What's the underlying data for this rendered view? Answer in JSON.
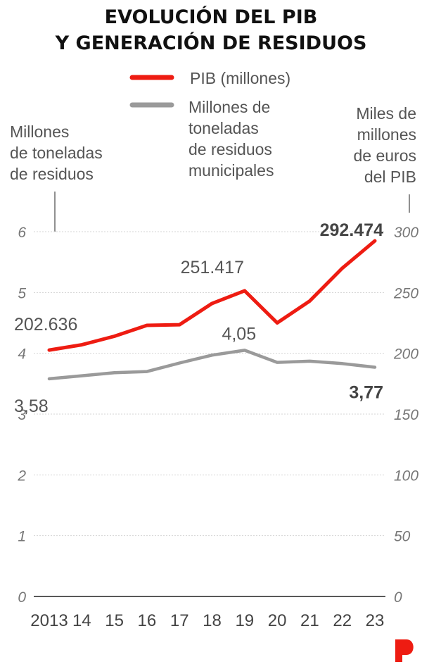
{
  "title_line1": "EVOLUCIÓN DEL PIB",
  "title_line2": "Y GENERACIÓN DE RESIDUOS",
  "legend": {
    "pib": "PIB (millones)",
    "waste_line1": "Millones de",
    "waste_line2": "toneladas",
    "waste_line3": "de residuos",
    "waste_line4": "municipales"
  },
  "left_axis_title": [
    "Millones",
    "de toneladas",
    "de residuos"
  ],
  "right_axis_title": [
    "Miles de",
    "millones",
    "de euros",
    "del PIB"
  ],
  "colors": {
    "pib": "#ee1c12",
    "waste": "#9a9a9a",
    "logo": "#ee1c12"
  },
  "logo_icon": "p-brand-logo-icon",
  "chart_data": {
    "type": "line",
    "x": [
      "2013",
      "14",
      "15",
      "16",
      "17",
      "18",
      "19",
      "20",
      "21",
      "22",
      "23"
    ],
    "left_axis": {
      "ylim": [
        0,
        6
      ],
      "ticks": [
        "0",
        "1",
        "2",
        "3",
        "4",
        "5",
        "6"
      ]
    },
    "right_axis": {
      "ylim": [
        0,
        300
      ],
      "ticks": [
        "0",
        "50",
        "100",
        "150",
        "200",
        "250",
        "300"
      ]
    },
    "grid": true,
    "series": [
      {
        "name": "PIB (millones)",
        "axis": "right",
        "values": [
          202.636,
          207,
          214,
          223,
          223.5,
          241,
          251.417,
          225,
          243,
          270,
          292.474
        ]
      },
      {
        "name": "Millones de toneladas de residuos municipales",
        "axis": "left",
        "values": [
          3.58,
          3.63,
          3.68,
          3.7,
          3.84,
          3.97,
          4.05,
          3.85,
          3.87,
          3.83,
          3.77
        ]
      }
    ],
    "annotations": [
      {
        "text": "202.636",
        "series": 0,
        "index": 0,
        "bold": false
      },
      {
        "text": "251.417",
        "series": 0,
        "index": 6,
        "bold": false
      },
      {
        "text": "292.474",
        "series": 0,
        "index": 10,
        "bold": true
      },
      {
        "text": "3,58",
        "series": 1,
        "index": 0,
        "bold": false
      },
      {
        "text": "4,05",
        "series": 1,
        "index": 6,
        "bold": false
      },
      {
        "text": "3,77",
        "series": 1,
        "index": 10,
        "bold": true
      }
    ]
  }
}
